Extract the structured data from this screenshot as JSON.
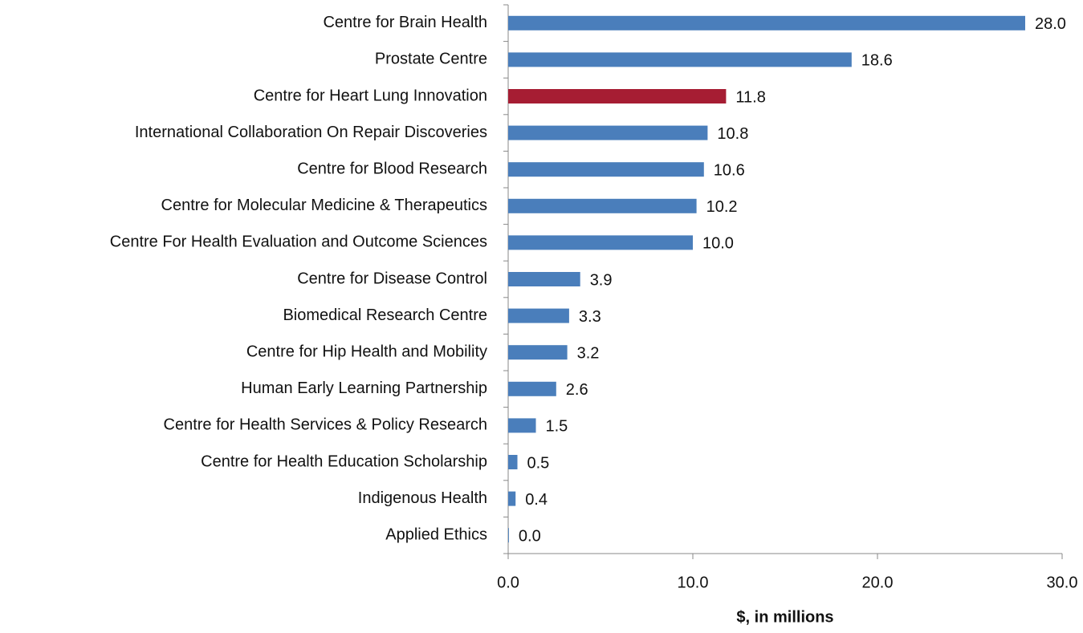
{
  "chart_data": {
    "type": "hbar",
    "categories": [
      "Centre for Brain Health",
      "Prostate Centre",
      "Centre for Heart Lung Innovation",
      "International Collaboration On Repair Discoveries",
      "Centre for Blood Research",
      "Centre for Molecular Medicine & Therapeutics",
      "Centre For Health Evaluation and Outcome Sciences",
      "Centre for Disease Control",
      "Biomedical Research Centre",
      "Centre for Hip Health and Mobility",
      "Human Early Learning Partnership",
      "Centre for Health Services & Policy Research",
      "Centre for Health Education Scholarship",
      "Indigenous Health",
      "Applied Ethics"
    ],
    "values": [
      28.0,
      18.6,
      11.8,
      10.8,
      10.6,
      10.2,
      10.0,
      3.9,
      3.3,
      3.2,
      2.6,
      1.5,
      0.5,
      0.4,
      0.04
    ],
    "value_labels": [
      "28.0",
      "18.6",
      "11.8",
      "10.8",
      "10.6",
      "10.2",
      "10.0",
      "3.9",
      "3.3",
      "3.2",
      "2.6",
      "1.5",
      "0.5",
      "0.4",
      "0.0"
    ],
    "colors": [
      "#4a7ebb",
      "#4a7ebb",
      "#a61d33",
      "#4a7ebb",
      "#4a7ebb",
      "#4a7ebb",
      "#4a7ebb",
      "#4a7ebb",
      "#4a7ebb",
      "#4a7ebb",
      "#4a7ebb",
      "#4a7ebb",
      "#4a7ebb",
      "#4a7ebb",
      "#4a7ebb"
    ],
    "xlim": [
      0,
      30
    ],
    "xticks": [
      {
        "value": 0,
        "label": "0.0"
      },
      {
        "value": 10,
        "label": "10.0"
      },
      {
        "value": 20,
        "label": "20.0"
      },
      {
        "value": 30,
        "label": "30.0"
      }
    ],
    "x_label": "$, in millions",
    "grid": false
  }
}
